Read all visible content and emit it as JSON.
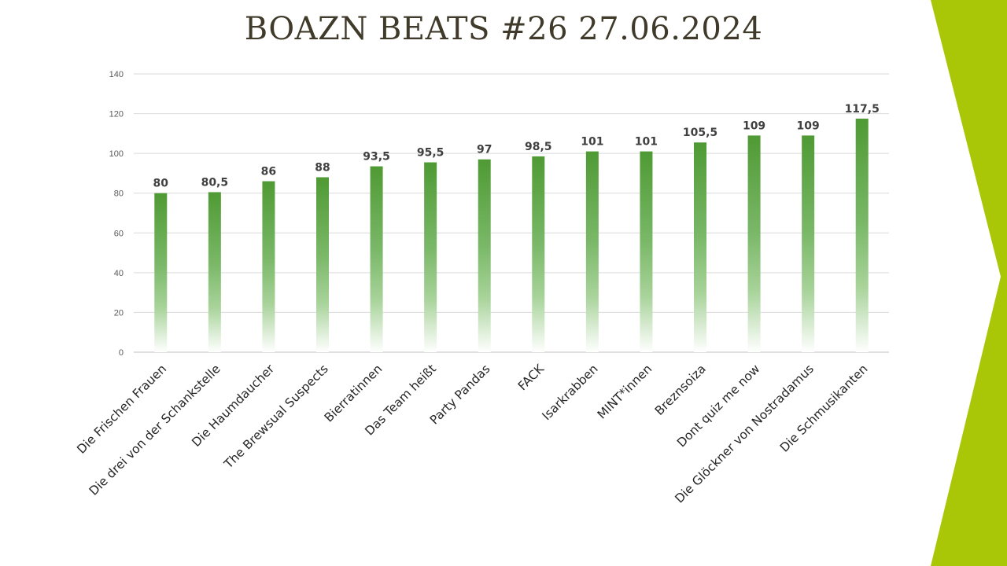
{
  "title": "BOAZN BEATS #26 27.06.2024",
  "colors": {
    "bar_top": "#4f9a34",
    "bar_bottom": "#ffffff",
    "accent": "#a9c706",
    "grid": "#d9d9d9",
    "title": "#3f3a2a"
  },
  "chart_data": {
    "type": "bar",
    "title": "BOAZN BEATS #26 27.06.2024",
    "xlabel": "",
    "ylabel": "",
    "ylim": [
      0,
      140
    ],
    "yticks": [
      0,
      20,
      40,
      60,
      80,
      100,
      120,
      140
    ],
    "grid": true,
    "legend": "none",
    "categories": [
      "Die Frischen Frauen",
      "Die drei von der Schankstelle",
      "Die Haumdaucher",
      "The Brewsual Suspects",
      "Bierratinnen",
      "Das Team heißt",
      "Party Pandas",
      "FACK",
      "Isarkrabben",
      "MINT*innen",
      "Breznsoiza",
      "Dont quiz me now",
      "Die Glöckner von Nostradamus",
      "Die Schmusikanten"
    ],
    "values": [
      80,
      80.5,
      86,
      88,
      93.5,
      95.5,
      97,
      98.5,
      101,
      101,
      105.5,
      109,
      109,
      117.5
    ],
    "value_labels": [
      "80",
      "80,5",
      "86",
      "88",
      "93,5",
      "95,5",
      "97",
      "98,5",
      "101",
      "101",
      "105,5",
      "109",
      "109",
      "117,5"
    ]
  }
}
